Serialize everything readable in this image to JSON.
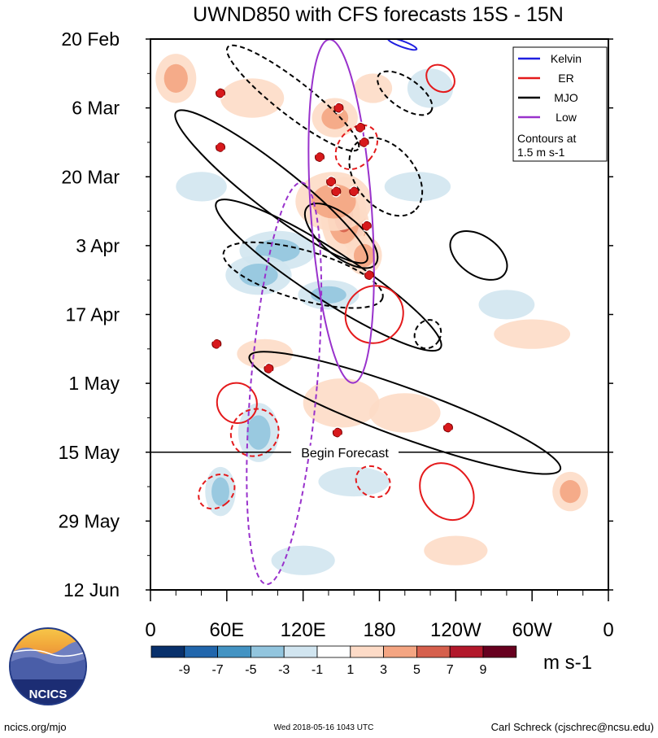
{
  "chart_data": {
    "type": "heatmap",
    "title": "UWND850 with CFS forecasts  15S - 15N",
    "variable": "UWND850",
    "x_tick_labels": [
      "0",
      "60E",
      "120E",
      "180",
      "120W",
      "60W",
      "0"
    ],
    "x_tick_lon": [
      0,
      60,
      120,
      180,
      240,
      300,
      360
    ],
    "y_tick_labels": [
      "20 Feb",
      "6 Mar",
      "20 Mar",
      "3 Apr",
      "17 Apr",
      "1 May",
      "15 May",
      "29 May",
      "12 Jun"
    ],
    "y_tick_day": [
      0,
      14,
      28,
      42,
      56,
      70,
      84,
      98,
      112
    ],
    "forecast_start_day": 84,
    "forecast_label": "Begin Forecast",
    "colorbar": {
      "labels": [
        "-9",
        "-7",
        "-5",
        "-3",
        "-1",
        "1",
        "3",
        "5",
        "7",
        "9"
      ],
      "colors": [
        "#08306b",
        "#2166ac",
        "#4393c3",
        "#92c5de",
        "#d1e5f0",
        "#ffffff",
        "#fddbc7",
        "#f4a582",
        "#d6604d",
        "#b2182b",
        "#67001f"
      ],
      "units": "m s-1"
    },
    "legend": [
      {
        "name": "Kelvin",
        "color": "#1f1fe0"
      },
      {
        "name": "ER",
        "color": "#e41a1c"
      },
      {
        "name": "MJO",
        "color": "#000000"
      },
      {
        "name": "Low",
        "color": "#9932cc"
      }
    ],
    "legend_note": [
      "Contours at",
      "1.5 m s-1"
    ],
    "anomaly_blobs": [
      {
        "lon": 160,
        "day": 38,
        "rlon": 12,
        "rday": 5,
        "v": 9
      },
      {
        "lon": 152,
        "day": 36,
        "rlon": 18,
        "rday": 8,
        "v": 6
      },
      {
        "lon": 144,
        "day": 33,
        "rlon": 30,
        "rday": 6,
        "v": 4
      },
      {
        "lon": 168,
        "day": 44,
        "rlon": 14,
        "rday": 4,
        "v": 4
      },
      {
        "lon": 145,
        "day": 16,
        "rlon": 18,
        "rday": 4,
        "v": 4
      },
      {
        "lon": 175,
        "day": 10,
        "rlon": 15,
        "rday": 3,
        "v": 2
      },
      {
        "lon": 20,
        "day": 8,
        "rlon": 16,
        "rday": 5,
        "v": 3
      },
      {
        "lon": 80,
        "day": 12,
        "rlon": 25,
        "rday": 4,
        "v": 2
      },
      {
        "lon": 150,
        "day": 74,
        "rlon": 30,
        "rday": 5,
        "v": 2
      },
      {
        "lon": 200,
        "day": 76,
        "rlon": 28,
        "rday": 4,
        "v": 2
      },
      {
        "lon": 330,
        "day": 92,
        "rlon": 14,
        "rday": 4,
        "v": 4
      },
      {
        "lon": 90,
        "day": 64,
        "rlon": 22,
        "rday": 3,
        "v": 2
      },
      {
        "lon": 240,
        "day": 104,
        "rlon": 25,
        "rday": 3,
        "v": 2
      },
      {
        "lon": 300,
        "day": 60,
        "rlon": 30,
        "rday": 3,
        "v": 2
      },
      {
        "lon": 100,
        "day": 43,
        "rlon": 30,
        "rday": 4,
        "v": -3
      },
      {
        "lon": 85,
        "day": 48,
        "rlon": 26,
        "rday": 4,
        "v": -4
      },
      {
        "lon": 140,
        "day": 52,
        "rlon": 24,
        "rday": 3,
        "v": -3
      },
      {
        "lon": 85,
        "day": 80,
        "rlon": 16,
        "rday": 6,
        "v": -4
      },
      {
        "lon": 55,
        "day": 92,
        "rlon": 12,
        "rday": 5,
        "v": -3
      },
      {
        "lon": 220,
        "day": 10,
        "rlon": 18,
        "rday": 4,
        "v": -2
      },
      {
        "lon": 210,
        "day": 30,
        "rlon": 26,
        "rday": 3,
        "v": -2
      },
      {
        "lon": 280,
        "day": 54,
        "rlon": 22,
        "rday": 3,
        "v": -2
      },
      {
        "lon": 160,
        "day": 90,
        "rlon": 28,
        "rday": 3,
        "v": -2
      },
      {
        "lon": 120,
        "day": 106,
        "rlon": 25,
        "rday": 3,
        "v": -2
      },
      {
        "lon": 40,
        "day": 30,
        "rlon": 20,
        "rday": 3,
        "v": -2
      }
    ],
    "contour_series": [
      {
        "name": "MJO",
        "style": "solid",
        "shapes": [
          {
            "lon": 95,
            "day": 30,
            "rlon": 95,
            "rday": 4.5,
            "ang": 38
          },
          {
            "lon": 140,
            "day": 48,
            "rlon": 105,
            "rday": 5,
            "ang": 33
          },
          {
            "lon": 150,
            "day": 40,
            "rlon": 35,
            "rday": 4,
            "ang": 40
          },
          {
            "lon": 258,
            "day": 44,
            "rlon": 25,
            "rday": 4,
            "ang": 35
          },
          {
            "lon": 200,
            "day": 76,
            "rlon": 130,
            "rday": 5,
            "ang": 20
          }
        ]
      },
      {
        "name": "MJO",
        "style": "dashed",
        "shapes": [
          {
            "lon": 120,
            "day": 48,
            "rlon": 65,
            "rday": 5,
            "ang": 16
          },
          {
            "lon": 112,
            "day": 12,
            "rlon": 65,
            "rday": 3.5,
            "ang": 38
          },
          {
            "lon": 185,
            "day": 28,
            "rlon": 35,
            "rday": 6,
            "ang": 50
          },
          {
            "lon": 200,
            "day": 11,
            "rlon": 25,
            "rday": 3,
            "ang": 35
          },
          {
            "lon": 218,
            "day": 60,
            "rlon": 10,
            "rday": 3,
            "ang": 30
          }
        ]
      },
      {
        "name": "ER",
        "style": "solid",
        "shapes": [
          {
            "lon": 176,
            "day": 56,
            "rlon": 22,
            "rday": 6,
            "ang": 50
          },
          {
            "lon": 68,
            "day": 74,
            "rlon": 16,
            "rday": 4,
            "ang": 50
          },
          {
            "lon": 233,
            "day": 92,
            "rlon": 24,
            "rday": 5,
            "ang": 52
          },
          {
            "lon": 228,
            "day": 8,
            "rlon": 12,
            "rday": 2.5,
            "ang": 40
          }
        ]
      },
      {
        "name": "ER",
        "style": "dashed",
        "shapes": [
          {
            "lon": 162,
            "day": 22,
            "rlon": 14,
            "rday": 5,
            "ang": 40
          },
          {
            "lon": 82,
            "day": 80,
            "rlon": 18,
            "rday": 5,
            "ang": 50
          },
          {
            "lon": 52,
            "day": 92,
            "rlon": 12,
            "rday": 4,
            "ang": 50
          },
          {
            "lon": 175,
            "day": 90,
            "rlon": 14,
            "rday": 3,
            "ang": 30
          }
        ]
      },
      {
        "name": "Low",
        "style": "solid",
        "shapes": [
          {
            "lon": 150,
            "day": 35,
            "rlon": 24,
            "rday": 35,
            "ang": -4
          }
        ]
      },
      {
        "name": "Low",
        "style": "dashed",
        "shapes": [
          {
            "lon": 105,
            "day": 70,
            "rlon": 26,
            "rday": 41,
            "ang": 5
          }
        ]
      },
      {
        "name": "Kelvin",
        "style": "solid",
        "shapes": [
          {
            "lon": 198,
            "day": 1,
            "rlon": 12,
            "rday": 0.6,
            "ang": 20
          }
        ]
      }
    ],
    "storm_markers": [
      {
        "lon": 55,
        "day": 11
      },
      {
        "lon": 55,
        "day": 22
      },
      {
        "lon": 133,
        "day": 24
      },
      {
        "lon": 148,
        "day": 14
      },
      {
        "lon": 142,
        "day": 29
      },
      {
        "lon": 146,
        "day": 31
      },
      {
        "lon": 160,
        "day": 31
      },
      {
        "lon": 170,
        "day": 38
      },
      {
        "lon": 172,
        "day": 48
      },
      {
        "lon": 52,
        "day": 62
      },
      {
        "lon": 93,
        "day": 67
      },
      {
        "lon": 147,
        "day": 80
      },
      {
        "lon": 234,
        "day": 79
      },
      {
        "lon": 168,
        "day": 21
      },
      {
        "lon": 165,
        "day": 18
      }
    ]
  },
  "logo": {
    "text": "NCICS"
  },
  "footer": {
    "left": "ncics.org/mjo",
    "center": "Wed 2018-05-16 1043 UTC",
    "right": "Carl Schreck (cjschrec@ncsu.edu)"
  }
}
